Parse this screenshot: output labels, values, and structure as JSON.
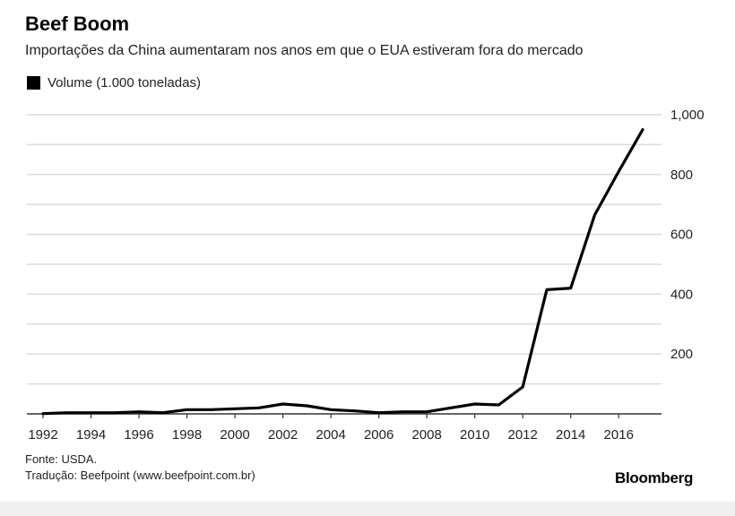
{
  "title": "Beef Boom",
  "subtitle": "Importações da China aumentaram nos anos em que o EUA estiveram fora do mercado",
  "legend": "Volume (1.000 toneladas)",
  "source": "Fonte: USDA.",
  "credit": "Tradução: Beefpoint (www.beefpoint.com.br)",
  "logo": "Bloomberg",
  "chart_data": {
    "type": "line",
    "title": "Beef Boom",
    "subtitle": "Importações da China aumentaram nos anos em que o EUA estiveram fora do mercado",
    "xlabel": "",
    "ylabel": "",
    "xlim": [
      1992,
      2017
    ],
    "ylim": [
      0,
      1000
    ],
    "grid": true,
    "legend_position": "top-left",
    "line_color": "#000000",
    "x_ticks": [
      "1992",
      "1994",
      "1996",
      "1998",
      "2000",
      "2002",
      "2004",
      "2006",
      "2008",
      "2010",
      "2012",
      "2014",
      "2016"
    ],
    "y_ticks": [
      "200",
      "400",
      "600",
      "800",
      "1,000"
    ],
    "series": [
      {
        "name": "Volume (1.000 toneladas)",
        "x": [
          1992,
          1993,
          1994,
          1995,
          1996,
          1997,
          1998,
          1999,
          2000,
          2001,
          2002,
          2003,
          2004,
          2005,
          2006,
          2007,
          2008,
          2009,
          2010,
          2011,
          2012,
          2013,
          2014,
          2015,
          2016,
          2017
        ],
        "values": [
          1,
          4,
          4,
          4,
          7,
          4,
          14,
          14,
          17,
          20,
          33,
          27,
          14,
          10,
          4,
          7,
          7,
          20,
          33,
          30,
          90,
          415,
          420,
          665,
          810,
          950
        ]
      }
    ]
  }
}
